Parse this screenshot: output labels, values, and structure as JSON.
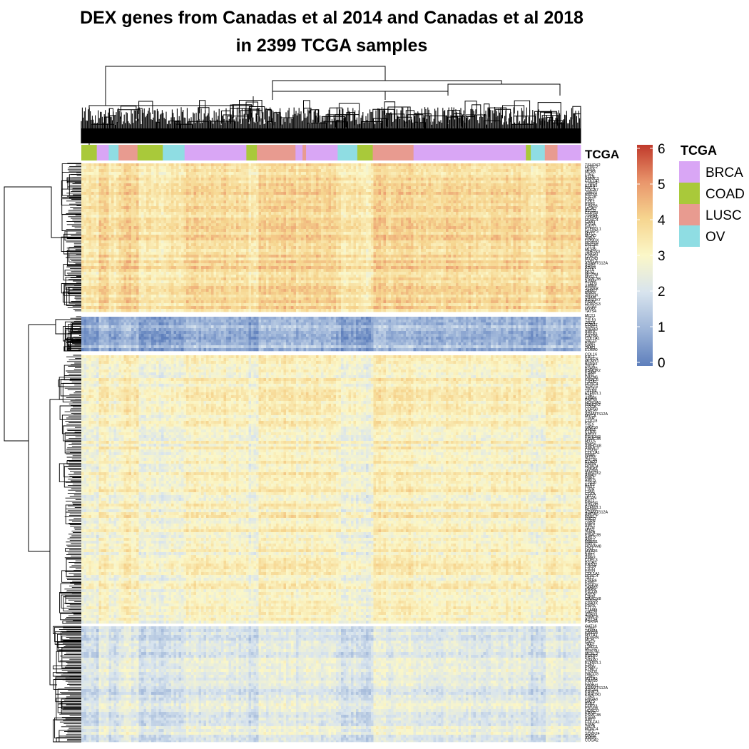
{
  "title_line1": "DEX genes from Canadas et al 2014 and Canadas et al 2018",
  "title_line2": "in 2399 TCGA samples",
  "chart_data": {
    "type": "heatmap",
    "samples_total": 2399,
    "annotation": {
      "name": "TCGA",
      "legend_title": "TCGA",
      "categories": [
        "BRCA",
        "COAD",
        "LUSC",
        "OV"
      ],
      "colors": {
        "BRCA": "#d9a6f5",
        "COAD": "#a9c93a",
        "LUSC": "#e89b90",
        "OV": "#8fdde3"
      },
      "sample_order": [
        "COAD",
        "BRCA",
        "OV",
        "LUSC",
        "COAD",
        "OV",
        "BRCA",
        "COAD",
        "LUSC",
        "BRCA",
        "LUSC",
        "BRCA",
        "OV",
        "COAD",
        "LUSC",
        "BRCA",
        "COAD",
        "OV",
        "LUSC",
        "BRCA"
      ],
      "segment_weights": [
        22,
        17,
        14,
        27,
        36,
        31,
        88,
        15,
        55,
        10,
        5,
        45,
        28,
        22,
        58,
        160,
        7,
        20,
        18,
        33
      ]
    },
    "color_scale": {
      "breaks": [
        0,
        1,
        2,
        3,
        4,
        5,
        6
      ],
      "tick_labels": [
        "0",
        "1",
        "2",
        "3",
        "4",
        "5",
        "6"
      ],
      "colors": [
        "#5e7fbc",
        "#9fb6d9",
        "#d8e4ee",
        "#fbf7c8",
        "#f6d58f",
        "#e9956b",
        "#c0392b"
      ]
    },
    "row_clusters": [
      {
        "id": "cluster-1",
        "level": "high",
        "mean_value": 3.6
      },
      {
        "id": "cluster-2",
        "level": "low",
        "mean_value": 0.9
      },
      {
        "id": "cluster-3",
        "level": "mid",
        "mean_value": 2.9
      },
      {
        "id": "cluster-4",
        "level": "mid-low",
        "mean_value": 2.1
      }
    ],
    "visible_row_labels": [
      "COL1A1",
      "HOXC4",
      "ELFN2L1",
      "ADAMTS12A",
      "PSMC3B"
    ]
  }
}
